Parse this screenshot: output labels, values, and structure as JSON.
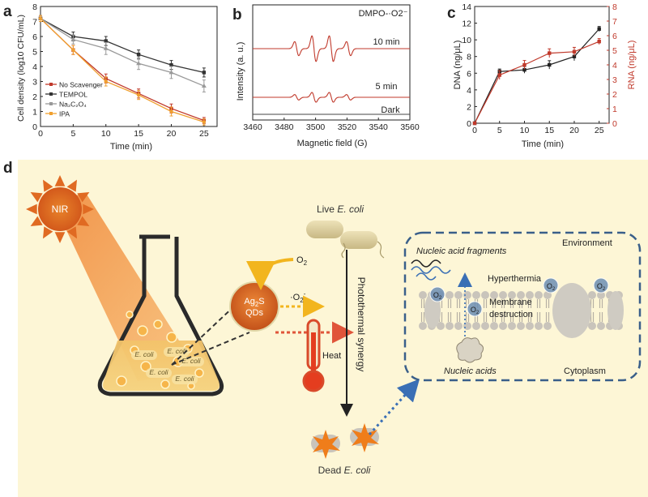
{
  "panels": {
    "a": "a",
    "b": "b",
    "c": "c",
    "d": "d"
  },
  "chart_data": [
    {
      "panel": "a",
      "type": "line",
      "title": "",
      "xlabel": "Time (min)",
      "ylabel": "Cell density (log10 CFU/mL)",
      "xlim": [
        0,
        27
      ],
      "ylim": [
        0,
        8
      ],
      "xticks": [
        0,
        5,
        10,
        15,
        20,
        25
      ],
      "yticks": [
        0,
        1,
        2,
        3,
        4,
        5,
        6,
        7,
        8
      ],
      "x": [
        0,
        5,
        10,
        15,
        20,
        25
      ],
      "legend_position": "bottom-left",
      "series": [
        {
          "name": "No Scavenger",
          "color": "#c0392b",
          "values": [
            7.2,
            5.1,
            3.2,
            2.2,
            1.2,
            0.4
          ],
          "errors": [
            0.2,
            0.3,
            0.3,
            0.3,
            0.3,
            0.2
          ]
        },
        {
          "name": "TEMPOL",
          "color": "#333333",
          "values": [
            7.2,
            6.0,
            5.7,
            4.8,
            4.1,
            3.6
          ],
          "errors": [
            0.2,
            0.3,
            0.3,
            0.3,
            0.3,
            0.3
          ]
        },
        {
          "name": "Na2C2O4",
          "color": "#999999",
          "values": [
            7.2,
            5.8,
            5.2,
            4.2,
            3.6,
            2.7
          ],
          "errors": [
            0.2,
            0.3,
            0.4,
            0.4,
            0.4,
            0.4
          ]
        },
        {
          "name": "IPA",
          "color": "#f0a030",
          "values": [
            7.2,
            5.1,
            3.0,
            2.1,
            1.0,
            0.3
          ],
          "errors": [
            0.2,
            0.3,
            0.3,
            0.3,
            0.3,
            0.2
          ]
        }
      ]
    },
    {
      "panel": "b",
      "type": "line",
      "title": "DMPO-·O2⁻",
      "xlabel": "Magnetic field (G)",
      "ylabel": "Intensity (a. u.)",
      "xlim": [
        3460,
        3560
      ],
      "xticks": [
        3460,
        3480,
        3500,
        3520,
        3540,
        3560
      ],
      "lines_centers": [
        3488,
        3499,
        3510,
        3521
      ],
      "series": [
        {
          "name": "10 min",
          "color": "#c0392b",
          "amplitude": 1.0
        },
        {
          "name": "5 min",
          "color": "#c0392b",
          "amplitude": 0.4
        },
        {
          "name": "Dark",
          "color": "#444444",
          "amplitude": 0.0
        }
      ]
    },
    {
      "panel": "c",
      "type": "line",
      "title": "",
      "xlabel": "Time (min)",
      "ylabel": "DNA (ng/μL)",
      "ylabel_right": "RNA (ng/μL)",
      "xlim": [
        0,
        27
      ],
      "ylim": [
        0,
        14
      ],
      "ylim_right": [
        0,
        8
      ],
      "xticks": [
        0,
        5,
        10,
        15,
        20,
        25
      ],
      "yticks": [
        0,
        2,
        4,
        6,
        8,
        10,
        12,
        14
      ],
      "yticks_right": [
        0,
        1,
        2,
        3,
        4,
        5,
        6,
        7,
        8
      ],
      "x": [
        0,
        5,
        10,
        15,
        20,
        25
      ],
      "series": [
        {
          "name": "DNA",
          "axis": "left",
          "color": "#222222",
          "values": [
            0,
            6.2,
            6.4,
            7.0,
            8.0,
            11.3
          ],
          "errors": [
            0,
            0.3,
            0.4,
            0.5,
            0.5,
            0.3
          ]
        },
        {
          "name": "RNA",
          "axis": "right",
          "color": "#c0392b",
          "values": [
            0,
            3.3,
            4.0,
            4.8,
            4.9,
            5.6
          ],
          "errors": [
            0,
            0.3,
            0.3,
            0.3,
            0.3,
            0.2
          ]
        }
      ]
    }
  ],
  "diagram": {
    "nir": "NIR",
    "qds_line1": "Ag",
    "qds_sub": "2",
    "qds_line1b": "S",
    "qds_line2": "QDs",
    "ecoli_labels": [
      "E. coli",
      "E. coli",
      "E. coli",
      "E. coli",
      "E. coli"
    ],
    "live_prefix": "Live ",
    "live_italic": "E. coli",
    "dead_prefix": "Dead ",
    "dead_italic": "E. coli",
    "o2": "O",
    "o2_sub": "2",
    "superoxide": "·O",
    "superoxide_sub": "2",
    "superoxide_sup": "-",
    "heat": "Heat",
    "synergy": "Photothermal synergy",
    "environment": "Environment",
    "cytoplasm": "Cytoplasm",
    "nucleic_fragments": "Nucleic acid fragments",
    "nucleic_acids": "Nucleic acids",
    "hyperthermia": "Hyperthermia",
    "membrane_line1": "Membrane",
    "membrane_line2": "destruction",
    "membrane_o2": [
      "O",
      "O",
      "O",
      "O"
    ]
  }
}
